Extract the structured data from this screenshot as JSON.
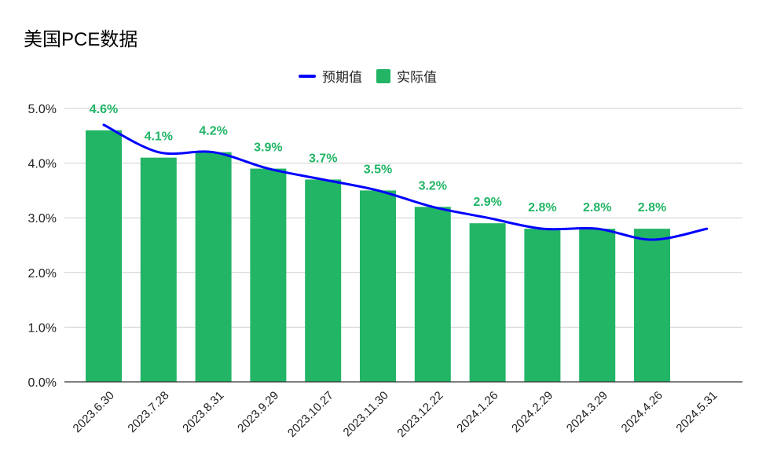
{
  "chart_data": {
    "type": "bar",
    "title": "美国PCE数据",
    "categories": [
      "2023.6.30",
      "2023.7.28",
      "2023.8.31",
      "2023.9.29",
      "2023.10.27",
      "2023.11.30",
      "2023.12.22",
      "2024.1.26",
      "2024.2.29",
      "2024.3.29",
      "2024.4.26",
      "2024.5.31"
    ],
    "series": [
      {
        "name": "预期值",
        "type": "line",
        "color": "#0000ff",
        "values": [
          4.7,
          4.2,
          4.2,
          3.9,
          3.7,
          3.5,
          3.2,
          3.0,
          2.8,
          2.8,
          2.6,
          2.8
        ]
      },
      {
        "name": "实际值",
        "type": "bar",
        "color": "#22b566",
        "values": [
          4.6,
          4.1,
          4.2,
          3.9,
          3.7,
          3.5,
          3.2,
          2.9,
          2.8,
          2.8,
          2.8,
          null
        ],
        "labels": [
          "4.6%",
          "4.1%",
          "4.2%",
          "3.9%",
          "3.7%",
          "3.5%",
          "3.2%",
          "2.9%",
          "2.8%",
          "2.8%",
          "2.8%",
          ""
        ]
      }
    ],
    "ylim": [
      0,
      5
    ],
    "yticks": [
      "0.0%",
      "1.0%",
      "2.0%",
      "3.0%",
      "4.0%",
      "5.0%"
    ],
    "grid": true,
    "legend_position": "top-center",
    "xlabel": "",
    "ylabel": ""
  }
}
